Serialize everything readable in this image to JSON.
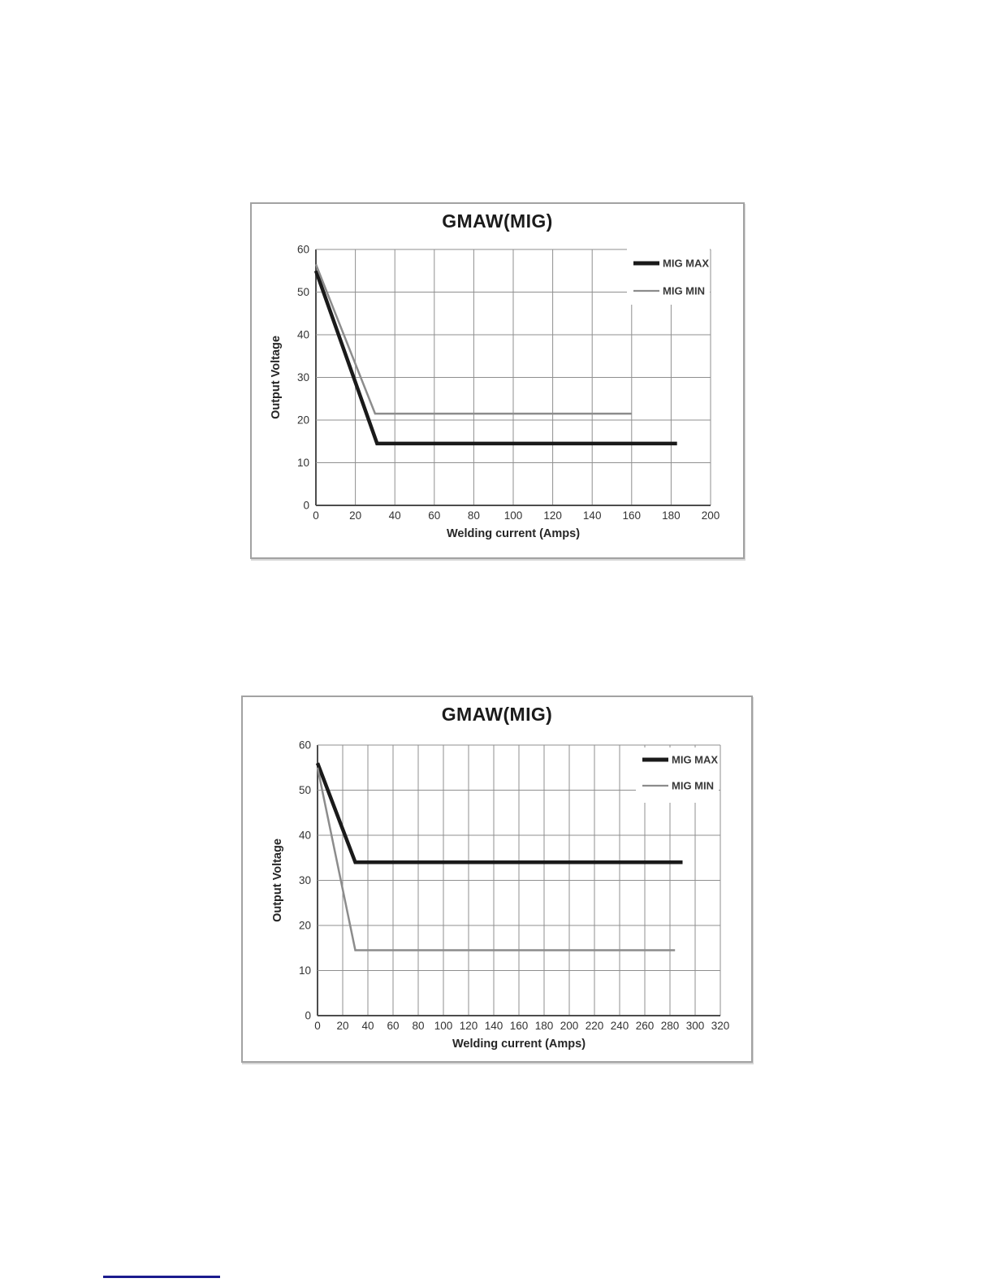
{
  "page": {
    "background": "#ffffff",
    "footer_rule_color": "#1b1b8e"
  },
  "chart_data": [
    {
      "type": "line",
      "title": "GMAW(MIG)",
      "xlabel": "Welding current (Amps)",
      "ylabel": "Output Voltage",
      "xlim": [
        0,
        200
      ],
      "ylim": [
        0,
        60
      ],
      "xticks": [
        0,
        20,
        40,
        60,
        80,
        100,
        120,
        140,
        160,
        180,
        200
      ],
      "yticks": [
        0,
        10,
        20,
        30,
        40,
        50,
        60
      ],
      "grid": true,
      "grid_color": "#8f8f8f",
      "axis_color": "#4d4d4d",
      "legend_position": "top-right-inside",
      "series": [
        {
          "name": "MIG MAX",
          "color": "#1a1a1a",
          "stroke_width": 4.5,
          "points": [
            [
              0,
              55
            ],
            [
              31,
              14.5
            ],
            [
              183,
              14.5
            ]
          ]
        },
        {
          "name": "MIG MIN",
          "color": "#8c8c8c",
          "stroke_width": 2.5,
          "points": [
            [
              0,
              56.5
            ],
            [
              30,
              21.5
            ],
            [
              160,
              21.5
            ]
          ]
        }
      ]
    },
    {
      "type": "line",
      "title": "GMAW(MIG)",
      "xlabel": "Welding current (Amps)",
      "ylabel": "Output Voltage",
      "xlim": [
        0,
        320
      ],
      "ylim": [
        0,
        60
      ],
      "xticks": [
        0,
        20,
        40,
        60,
        80,
        100,
        120,
        140,
        160,
        180,
        200,
        220,
        240,
        260,
        280,
        300,
        320
      ],
      "yticks": [
        0,
        10,
        20,
        30,
        40,
        50,
        60
      ],
      "grid": true,
      "grid_color": "#8f8f8f",
      "axis_color": "#4d4d4d",
      "legend_position": "top-right-inside",
      "series": [
        {
          "name": "MIG MAX",
          "color": "#1a1a1a",
          "stroke_width": 4.5,
          "points": [
            [
              0,
              56
            ],
            [
              30,
              34
            ],
            [
              290,
              34
            ]
          ]
        },
        {
          "name": "MIG MIN",
          "color": "#8c8c8c",
          "stroke_width": 2.5,
          "points": [
            [
              0,
              55
            ],
            [
              30,
              14.5
            ],
            [
              284,
              14.5
            ]
          ]
        }
      ]
    }
  ]
}
